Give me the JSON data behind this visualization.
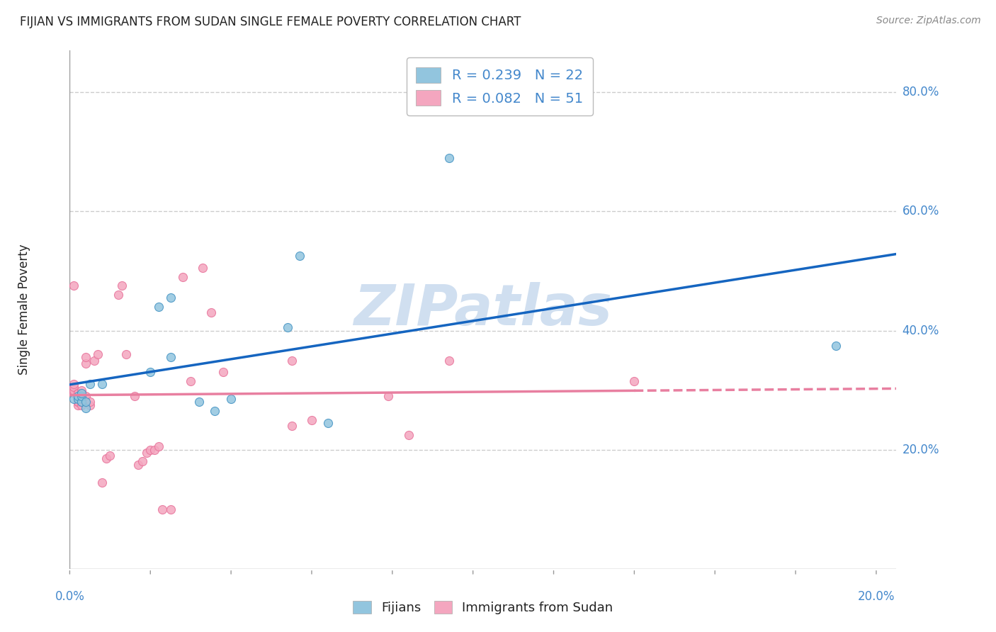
{
  "title": "FIJIAN VS IMMIGRANTS FROM SUDAN SINGLE FEMALE POVERTY CORRELATION CHART",
  "source": "Source: ZipAtlas.com",
  "ylabel": "Single Female Poverty",
  "yticks": [
    0.0,
    0.2,
    0.4,
    0.6,
    0.8
  ],
  "ytick_labels": [
    "",
    "20.0%",
    "40.0%",
    "60.0%",
    "80.0%"
  ],
  "xlim": [
    0.0,
    0.205
  ],
  "ylim": [
    0.0,
    0.87
  ],
  "fijian_color": "#92c5de",
  "fijian_edge": "#4393c3",
  "sudan_color": "#f4a6bf",
  "sudan_edge": "#e8729a",
  "line_blue": "#1565c0",
  "line_pink": "#e87fa0",
  "background": "#ffffff",
  "grid_color": "#cccccc",
  "watermark_color": "#d0dff0",
  "title_color": "#222222",
  "axis_color": "#4488cc",
  "fijian_x": [
    0.001,
    0.002,
    0.002,
    0.003,
    0.003,
    0.003,
    0.004,
    0.004,
    0.005,
    0.008,
    0.02,
    0.022,
    0.025,
    0.025,
    0.032,
    0.036,
    0.04,
    0.054,
    0.057,
    0.064,
    0.094,
    0.19
  ],
  "fijian_y": [
    0.285,
    0.285,
    0.29,
    0.28,
    0.29,
    0.295,
    0.27,
    0.28,
    0.31,
    0.31,
    0.33,
    0.44,
    0.455,
    0.355,
    0.28,
    0.265,
    0.285,
    0.405,
    0.525,
    0.245,
    0.69,
    0.375
  ],
  "sudan_x": [
    0.001,
    0.001,
    0.001,
    0.001,
    0.001,
    0.002,
    0.002,
    0.002,
    0.002,
    0.002,
    0.002,
    0.002,
    0.003,
    0.003,
    0.003,
    0.003,
    0.003,
    0.004,
    0.004,
    0.004,
    0.005,
    0.005,
    0.006,
    0.007,
    0.008,
    0.009,
    0.01,
    0.012,
    0.013,
    0.014,
    0.016,
    0.017,
    0.018,
    0.019,
    0.02,
    0.021,
    0.022,
    0.023,
    0.025,
    0.028,
    0.03,
    0.033,
    0.035,
    0.038,
    0.055,
    0.055,
    0.06,
    0.079,
    0.084,
    0.094,
    0.14
  ],
  "sudan_y": [
    0.475,
    0.295,
    0.3,
    0.305,
    0.31,
    0.275,
    0.28,
    0.28,
    0.29,
    0.29,
    0.295,
    0.295,
    0.275,
    0.28,
    0.285,
    0.29,
    0.3,
    0.345,
    0.355,
    0.29,
    0.275,
    0.28,
    0.35,
    0.36,
    0.145,
    0.185,
    0.19,
    0.46,
    0.475,
    0.36,
    0.29,
    0.175,
    0.18,
    0.195,
    0.2,
    0.2,
    0.205,
    0.1,
    0.1,
    0.49,
    0.315,
    0.505,
    0.43,
    0.33,
    0.35,
    0.24,
    0.25,
    0.29,
    0.225,
    0.35,
    0.315
  ],
  "marker_size": 75
}
